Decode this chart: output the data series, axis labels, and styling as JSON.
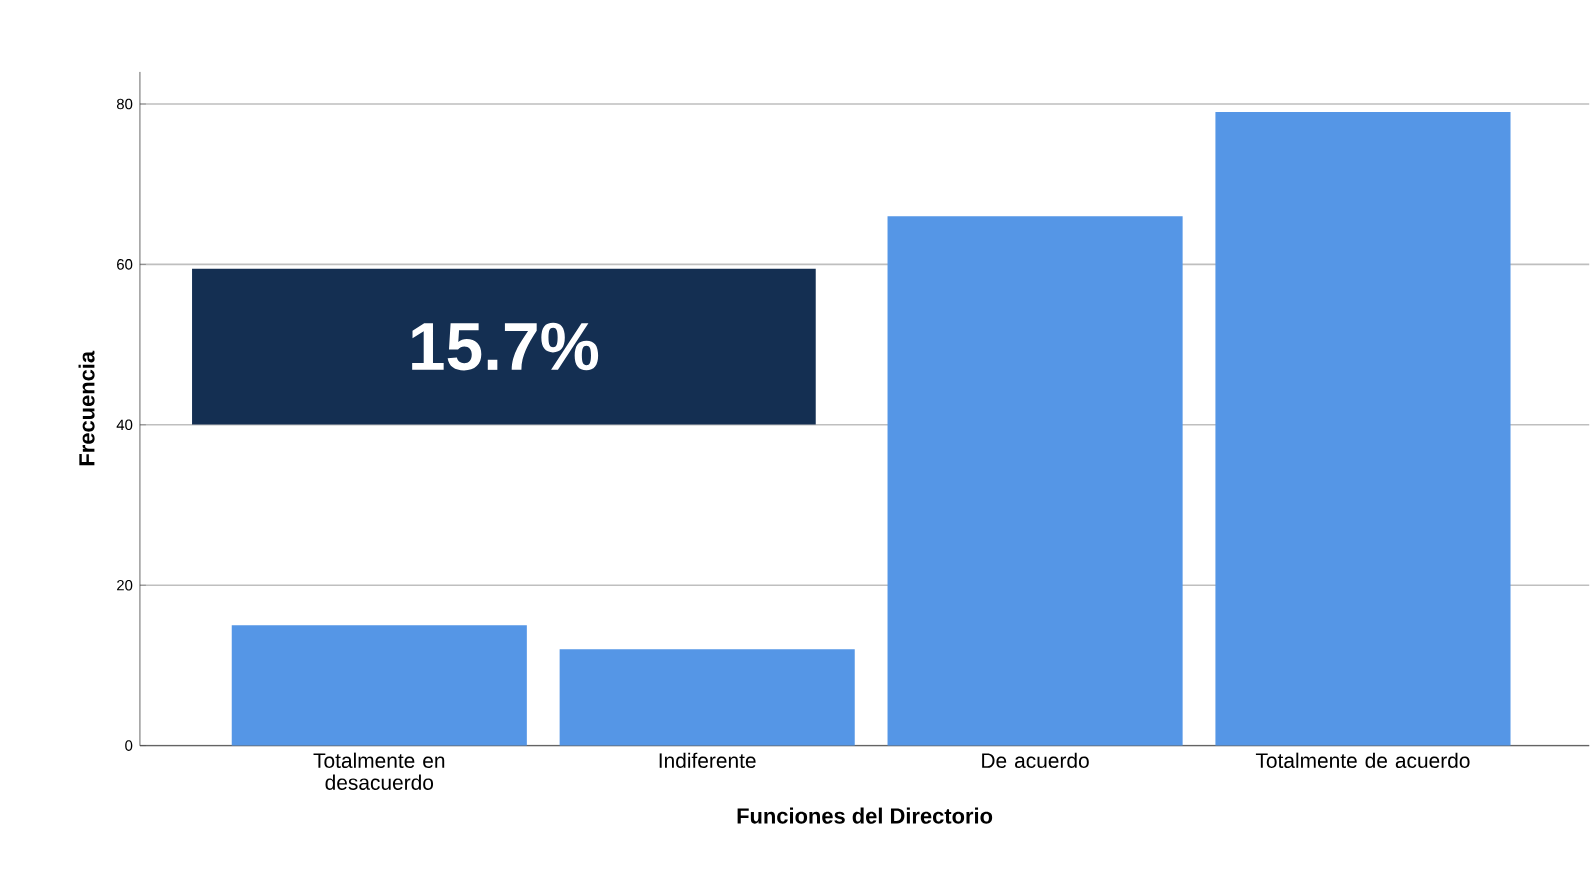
{
  "chart_data": {
    "type": "bar",
    "xlabel": "Funciones del Directorio",
    "ylabel": "Frecuencia",
    "categories": [
      "Totalmente en desacuerdo",
      "Indiferente",
      "De acuerdo",
      "Totalmente de acuerdo"
    ],
    "values": [
      15,
      12,
      66,
      79
    ],
    "color": "#5596e6",
    "ylim": [
      0,
      84
    ],
    "yticks": [
      0,
      20,
      40,
      60,
      80
    ],
    "grid": "y",
    "annotations": [
      "15.7%"
    ]
  }
}
